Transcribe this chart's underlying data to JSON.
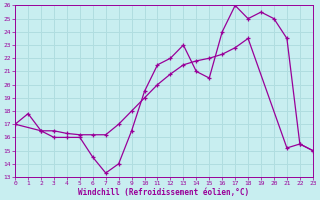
{
  "xlabel": "Windchill (Refroidissement éolien,°C)",
  "background_color": "#c8eef0",
  "grid_color": "#b0dde0",
  "line_color": "#990099",
  "xmin": 0,
  "xmax": 23,
  "ymin": 13,
  "ymax": 26,
  "line1_x": [
    0,
    1,
    2,
    3,
    4,
    5,
    6,
    7,
    8,
    9,
    10,
    11,
    12,
    13,
    14,
    15,
    16,
    17,
    18,
    19,
    20,
    21,
    22,
    23
  ],
  "line1_y": [
    17.0,
    17.8,
    16.5,
    16.0,
    16.0,
    16.0,
    14.5,
    13.3,
    14.0,
    16.5,
    19.5,
    21.5,
    22.0,
    23.0,
    21.0,
    20.5,
    24.0,
    26.0,
    25.0,
    25.5,
    25.0,
    23.5,
    15.5,
    15.0
  ],
  "line2_x": [
    0,
    2,
    3,
    4,
    5,
    6,
    7,
    8,
    9,
    10,
    11,
    12,
    13,
    14,
    15,
    16,
    17,
    18,
    21,
    22,
    23
  ],
  "line2_y": [
    17.0,
    16.5,
    16.5,
    16.3,
    16.2,
    16.2,
    16.2,
    17.0,
    18.0,
    19.0,
    20.0,
    20.8,
    21.5,
    21.8,
    22.0,
    22.3,
    22.8,
    23.5,
    15.2,
    15.5,
    15.0
  ]
}
